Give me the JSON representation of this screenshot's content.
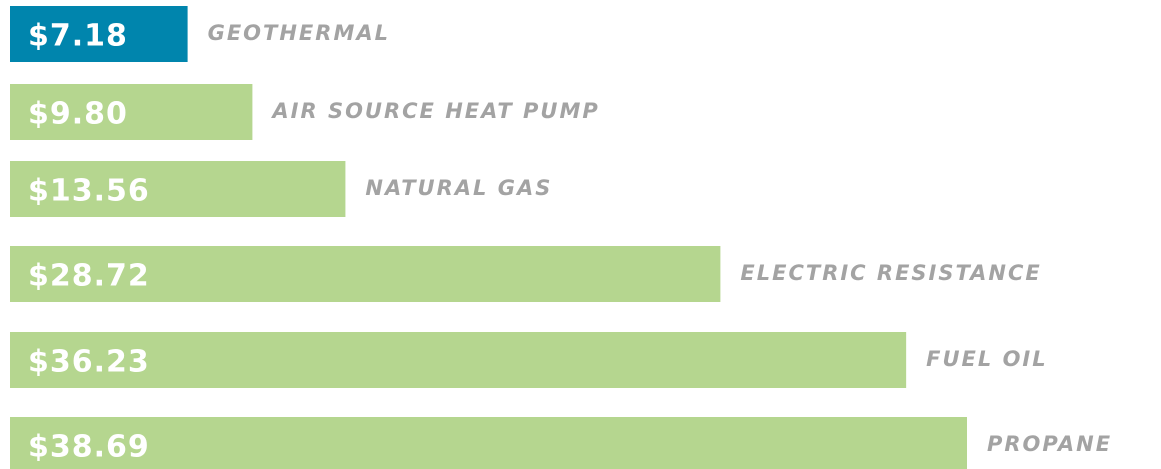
{
  "chart_data": {
    "type": "bar",
    "orientation": "horizontal",
    "categories": [
      "GEOTHERMAL",
      "AIR SOURCE HEAT PUMP",
      "NATURAL GAS",
      "ELECTRIC RESISTANCE",
      "FUEL OIL",
      "PROPANE"
    ],
    "values": [
      7.18,
      9.8,
      13.56,
      28.72,
      36.23,
      38.69
    ],
    "value_labels": [
      "$7.18",
      "$9.80",
      "$13.56",
      "$28.72",
      "$36.23",
      "$38.69"
    ],
    "colors": [
      "#0085ad",
      "#b5d68f",
      "#b5d68f",
      "#b5d68f",
      "#b5d68f",
      "#b5d68f"
    ]
  }
}
